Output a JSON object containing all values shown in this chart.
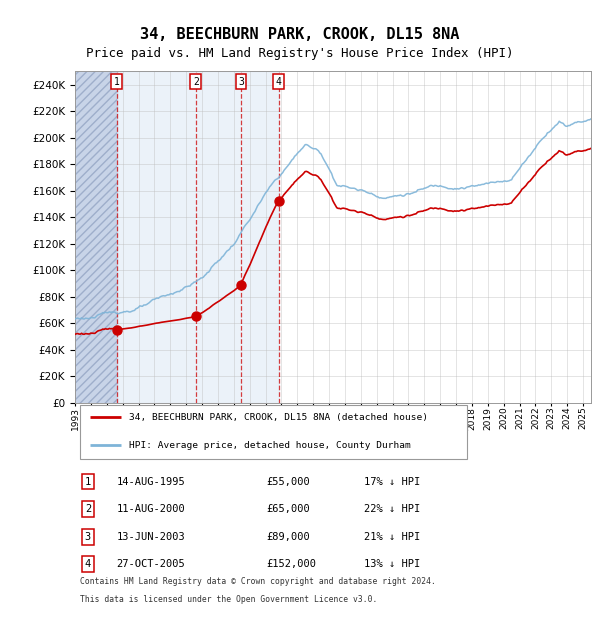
{
  "title": "34, BEECHBURN PARK, CROOK, DL15 8NA",
  "subtitle": "Price paid vs. HM Land Registry's House Price Index (HPI)",
  "legend_line1": "34, BEECHBURN PARK, CROOK, DL15 8NA (detached house)",
  "legend_line2": "HPI: Average price, detached house, County Durham",
  "footer1": "Contains HM Land Registry data © Crown copyright and database right 2024.",
  "footer2": "This data is licensed under the Open Government Licence v3.0.",
  "transactions": [
    {
      "num": 1,
      "date": "14-AUG-1995",
      "price": 55000,
      "pct": "17%",
      "direction": "↓"
    },
    {
      "num": 2,
      "date": "11-AUG-2000",
      "price": 65000,
      "pct": "22%",
      "direction": "↓"
    },
    {
      "num": 3,
      "date": "13-JUN-2003",
      "price": 89000,
      "pct": "21%",
      "direction": "↓"
    },
    {
      "num": 4,
      "date": "27-OCT-2005",
      "price": 152000,
      "pct": "13%",
      "direction": "↓"
    }
  ],
  "transaction_years": [
    1995.617,
    2000.611,
    2003.452,
    2005.822
  ],
  "transaction_prices": [
    55000,
    65000,
    89000,
    152000
  ],
  "ylim": [
    0,
    250000
  ],
  "yticks": [
    0,
    20000,
    40000,
    60000,
    80000,
    100000,
    120000,
    140000,
    160000,
    180000,
    200000,
    220000,
    240000
  ],
  "color_red": "#cc0000",
  "color_blue": "#7eb4d8",
  "color_bg_shade": "#dce8f5",
  "color_grid": "#bbbbbb",
  "title_fontsize": 11,
  "subtitle_fontsize": 9,
  "xmin": 1993,
  "xmax": 2025.5
}
